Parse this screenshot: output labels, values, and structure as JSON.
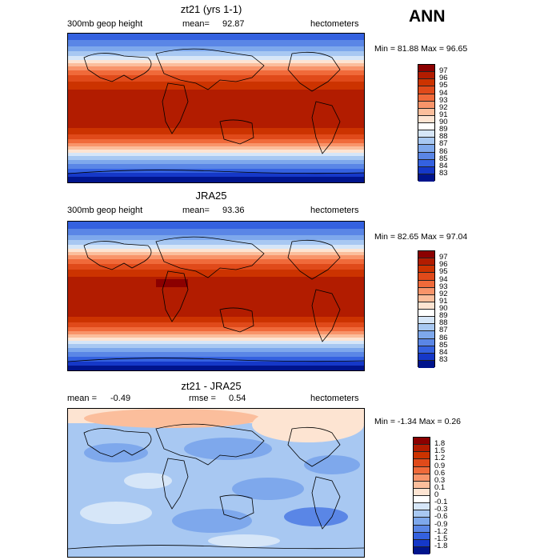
{
  "main_title": "ANN",
  "panels": [
    {
      "title": "zt21 (yrs 1-1)",
      "left_label": "300mb geop height",
      "stat_label": "mean=",
      "stat_value": "92.87",
      "stat2_label": "",
      "stat2_value": "",
      "units": "hectometers",
      "min_label": "Min =",
      "min_value": "81.88",
      "max_label": "Max =",
      "max_value": "96.65",
      "colorbar": {
        "labels": [
          "97",
          "96",
          "95",
          "94",
          "93",
          "92",
          "91",
          "90",
          "89",
          "88",
          "87",
          "86",
          "85",
          "84",
          "83"
        ],
        "colors": [
          "#8b0000",
          "#b21c00",
          "#cc3300",
          "#e04a1a",
          "#f06a3a",
          "#f8946a",
          "#fbbe9c",
          "#fde4d2",
          "#ffffff",
          "#d6e6f8",
          "#a8c8f2",
          "#7ea8ec",
          "#5a86e6",
          "#3461e0",
          "#1538c8",
          "#00148c"
        ]
      }
    },
    {
      "title": "JRA25",
      "left_label": "300mb geop height",
      "stat_label": "mean=",
      "stat_value": "93.36",
      "stat2_label": "",
      "stat2_value": "",
      "units": "hectometers",
      "min_label": "Min =",
      "min_value": "82.65",
      "max_label": "Max =",
      "max_value": "97.04",
      "colorbar": {
        "labels": [
          "97",
          "96",
          "95",
          "94",
          "93",
          "92",
          "91",
          "90",
          "89",
          "88",
          "87",
          "86",
          "85",
          "84",
          "83"
        ],
        "colors": [
          "#8b0000",
          "#b21c00",
          "#cc3300",
          "#e04a1a",
          "#f06a3a",
          "#f8946a",
          "#fbbe9c",
          "#fde4d2",
          "#ffffff",
          "#d6e6f8",
          "#a8c8f2",
          "#7ea8ec",
          "#5a86e6",
          "#3461e0",
          "#1538c8",
          "#00148c"
        ]
      }
    },
    {
      "title": "zt21 - JRA25",
      "left_label": "mean =",
      "stat_label": "",
      "stat_value": "-0.49",
      "stat2_label": "rmse =",
      "stat2_value": "0.54",
      "units": "hectometers",
      "min_label": "Min =",
      "min_value": "-1.34",
      "max_label": "Max =",
      "max_value": "0.26",
      "colorbar": {
        "labels": [
          "1.8",
          "1.5",
          "1.2",
          "0.9",
          "0.6",
          "0.3",
          "0.1",
          "0",
          "-0.1",
          "-0.3",
          "-0.6",
          "-0.9",
          "-1.2",
          "-1.5",
          "-1.8"
        ],
        "colors": [
          "#8b0000",
          "#b21c00",
          "#cc3300",
          "#e04a1a",
          "#f06a3a",
          "#f8946a",
          "#fbbe9c",
          "#fde4d2",
          "#ffffff",
          "#d6e6f8",
          "#a8c8f2",
          "#7ea8ec",
          "#5a86e6",
          "#3461e0",
          "#1538c8",
          "#00148c"
        ]
      }
    }
  ],
  "chart_data": [
    {
      "type": "heatmap",
      "title": "zt21 (yrs 1-1)",
      "variable": "300mb geop height",
      "units": "hectometers",
      "mean": 92.87,
      "min": 81.88,
      "max": 96.65,
      "contour_levels": [
        83,
        84,
        85,
        86,
        87,
        88,
        89,
        90,
        91,
        92,
        93,
        94,
        95,
        96,
        97
      ]
    },
    {
      "type": "heatmap",
      "title": "JRA25",
      "variable": "300mb geop height",
      "units": "hectometers",
      "mean": 93.36,
      "min": 82.65,
      "max": 97.04,
      "contour_levels": [
        83,
        84,
        85,
        86,
        87,
        88,
        89,
        90,
        91,
        92,
        93,
        94,
        95,
        96,
        97
      ]
    },
    {
      "type": "heatmap",
      "title": "zt21 - JRA25",
      "units": "hectometers",
      "mean": -0.49,
      "rmse": 0.54,
      "min": -1.34,
      "max": 0.26,
      "contour_levels": [
        -1.8,
        -1.5,
        -1.2,
        -0.9,
        -0.6,
        -0.3,
        -0.1,
        0,
        0.1,
        0.3,
        0.6,
        0.9,
        1.2,
        1.5,
        1.8
      ]
    }
  ]
}
